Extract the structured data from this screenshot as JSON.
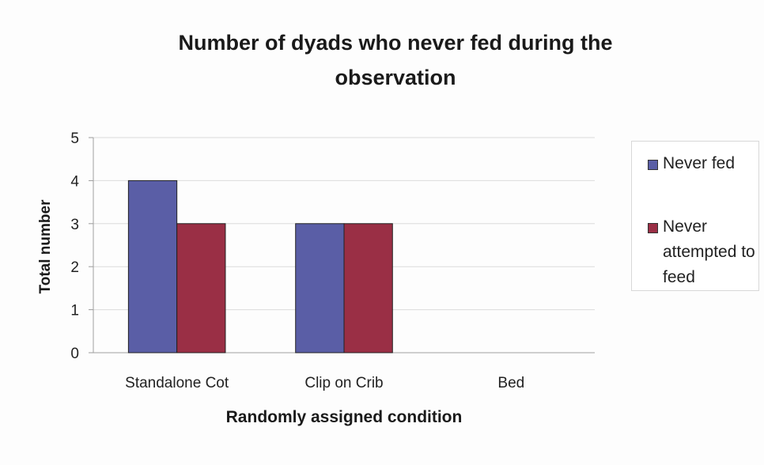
{
  "chart_data": {
    "type": "bar",
    "title": "Number of dyads who never fed during the observation",
    "xlabel": "Randomly assigned condition",
    "ylabel": "Total number",
    "categories": [
      "Standalone Cot",
      "Clip on Crib",
      "Bed"
    ],
    "series": [
      {
        "name": "Never fed",
        "values": [
          4,
          3,
          0
        ],
        "color": "#5a5ea6"
      },
      {
        "name": "Never attempted to feed",
        "values": [
          3,
          3,
          0
        ],
        "color": "#9a2f45"
      }
    ],
    "ylim": [
      0,
      5
    ],
    "yticks": [
      0,
      1,
      2,
      3,
      4,
      5
    ],
    "grid": true,
    "legend_position": "right"
  }
}
